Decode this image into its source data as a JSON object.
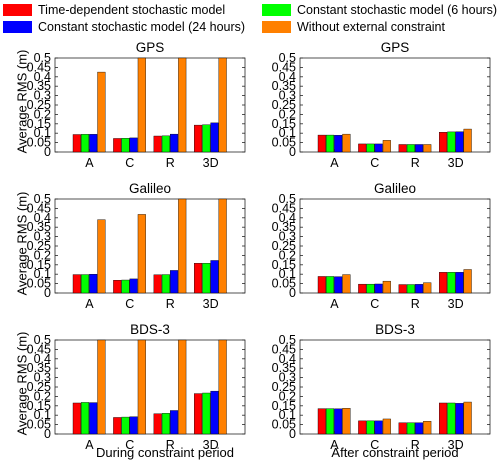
{
  "legend": {
    "items": [
      {
        "label": "Time-dependent stochastic model",
        "color": "#ff0000"
      },
      {
        "label": "Constant stochastic model (6 hours)",
        "color": "#00ff00"
      },
      {
        "label": "Constant stochastic model (24 hours)",
        "color": "#0000ff"
      },
      {
        "label": "Without external constraint",
        "color": "#ff8000"
      }
    ]
  },
  "ylabel": "Average RMS (m)",
  "xlabels": [
    "During constraint period",
    "After constraint period"
  ],
  "chart_data": [
    {
      "type": "bar",
      "title": "GPS",
      "categories": [
        "A",
        "C",
        "R",
        "3D"
      ],
      "ylim": [
        0,
        0.5
      ],
      "yticks": [
        "0",
        "0.05",
        "0.1",
        "0.15",
        "0.2",
        "0.25",
        "0.3",
        "0.35",
        "0.4",
        "0.45",
        "0.5"
      ],
      "series": [
        {
          "name": "Time-dependent stochastic model",
          "values": [
            0.093,
            0.072,
            0.085,
            0.143
          ]
        },
        {
          "name": "Constant stochastic model (6 hours)",
          "values": [
            0.094,
            0.073,
            0.086,
            0.145
          ]
        },
        {
          "name": "Constant stochastic model (24 hours)",
          "values": [
            0.094,
            0.075,
            0.095,
            0.155
          ]
        },
        {
          "name": "Without external constraint",
          "values": [
            0.425,
            0.5,
            0.5,
            0.5
          ]
        }
      ]
    },
    {
      "type": "bar",
      "title": "GPS",
      "categories": [
        "A",
        "C",
        "R",
        "3D"
      ],
      "ylim": [
        0,
        0.5
      ],
      "yticks": [
        "0",
        "0.05",
        "0.1",
        "0.15",
        "0.2",
        "0.25",
        "0.3",
        "0.35",
        "0.4",
        "0.45",
        "0.5"
      ],
      "series": [
        {
          "name": "Time-dependent stochastic model",
          "values": [
            0.09,
            0.043,
            0.04,
            0.105
          ]
        },
        {
          "name": "Constant stochastic model (6 hours)",
          "values": [
            0.09,
            0.043,
            0.04,
            0.107
          ]
        },
        {
          "name": "Constant stochastic model (24 hours)",
          "values": [
            0.089,
            0.043,
            0.04,
            0.108
          ]
        },
        {
          "name": "Without external constraint",
          "values": [
            0.095,
            0.062,
            0.04,
            0.122
          ]
        }
      ]
    },
    {
      "type": "bar",
      "title": "Galileo",
      "categories": [
        "A",
        "C",
        "R",
        "3D"
      ],
      "ylim": [
        0,
        0.5
      ],
      "yticks": [
        "0",
        "0.05",
        "0.1",
        "0.15",
        "0.2",
        "0.25",
        "0.3",
        "0.35",
        "0.4",
        "0.45",
        "0.5"
      ],
      "series": [
        {
          "name": "Time-dependent stochastic model",
          "values": [
            0.098,
            0.068,
            0.097,
            0.158
          ]
        },
        {
          "name": "Constant stochastic model (6 hours)",
          "values": [
            0.098,
            0.069,
            0.098,
            0.158
          ]
        },
        {
          "name": "Constant stochastic model (24 hours)",
          "values": [
            0.1,
            0.075,
            0.12,
            0.173
          ]
        },
        {
          "name": "Without external constraint",
          "values": [
            0.39,
            0.418,
            0.5,
            0.5
          ]
        }
      ]
    },
    {
      "type": "bar",
      "title": "Galileo",
      "categories": [
        "A",
        "C",
        "R",
        "3D"
      ],
      "ylim": [
        0,
        0.5
      ],
      "yticks": [
        "0",
        "0.05",
        "0.1",
        "0.15",
        "0.2",
        "0.25",
        "0.3",
        "0.35",
        "0.4",
        "0.45",
        "0.5"
      ],
      "series": [
        {
          "name": "Time-dependent stochastic model",
          "values": [
            0.088,
            0.047,
            0.045,
            0.11
          ]
        },
        {
          "name": "Constant stochastic model (6 hours)",
          "values": [
            0.088,
            0.047,
            0.045,
            0.11
          ]
        },
        {
          "name": "Constant stochastic model (24 hours)",
          "values": [
            0.087,
            0.048,
            0.046,
            0.11
          ]
        },
        {
          "name": "Without external constraint",
          "values": [
            0.098,
            0.063,
            0.055,
            0.125
          ]
        }
      ]
    },
    {
      "type": "bar",
      "title": "BDS-3",
      "categories": [
        "A",
        "C",
        "R",
        "3D"
      ],
      "ylim": [
        0,
        0.5
      ],
      "yticks": [
        "0",
        "0.05",
        "0.1",
        "0.15",
        "0.2",
        "0.25",
        "0.3",
        "0.35",
        "0.4",
        "0.45",
        "0.5"
      ],
      "series": [
        {
          "name": "Time-dependent stochastic model",
          "values": [
            0.165,
            0.088,
            0.108,
            0.215
          ]
        },
        {
          "name": "Constant stochastic model (6 hours)",
          "values": [
            0.168,
            0.09,
            0.11,
            0.218
          ]
        },
        {
          "name": "Constant stochastic model (24 hours)",
          "values": [
            0.167,
            0.092,
            0.125,
            0.228
          ]
        },
        {
          "name": "Without external constraint",
          "values": [
            0.5,
            0.5,
            0.5,
            0.5
          ]
        }
      ]
    },
    {
      "type": "bar",
      "title": "BDS-3",
      "categories": [
        "A",
        "C",
        "R",
        "3D"
      ],
      "ylim": [
        0,
        0.5
      ],
      "yticks": [
        "0",
        "0.05",
        "0.1",
        "0.15",
        "0.2",
        "0.25",
        "0.3",
        "0.35",
        "0.4",
        "0.45",
        "0.5"
      ],
      "series": [
        {
          "name": "Time-dependent stochastic model",
          "values": [
            0.135,
            0.07,
            0.06,
            0.165
          ]
        },
        {
          "name": "Constant stochastic model (6 hours)",
          "values": [
            0.135,
            0.07,
            0.06,
            0.165
          ]
        },
        {
          "name": "Constant stochastic model (24 hours)",
          "values": [
            0.134,
            0.07,
            0.06,
            0.163
          ]
        },
        {
          "name": "Without external constraint",
          "values": [
            0.137,
            0.08,
            0.068,
            0.17
          ]
        }
      ]
    }
  ]
}
